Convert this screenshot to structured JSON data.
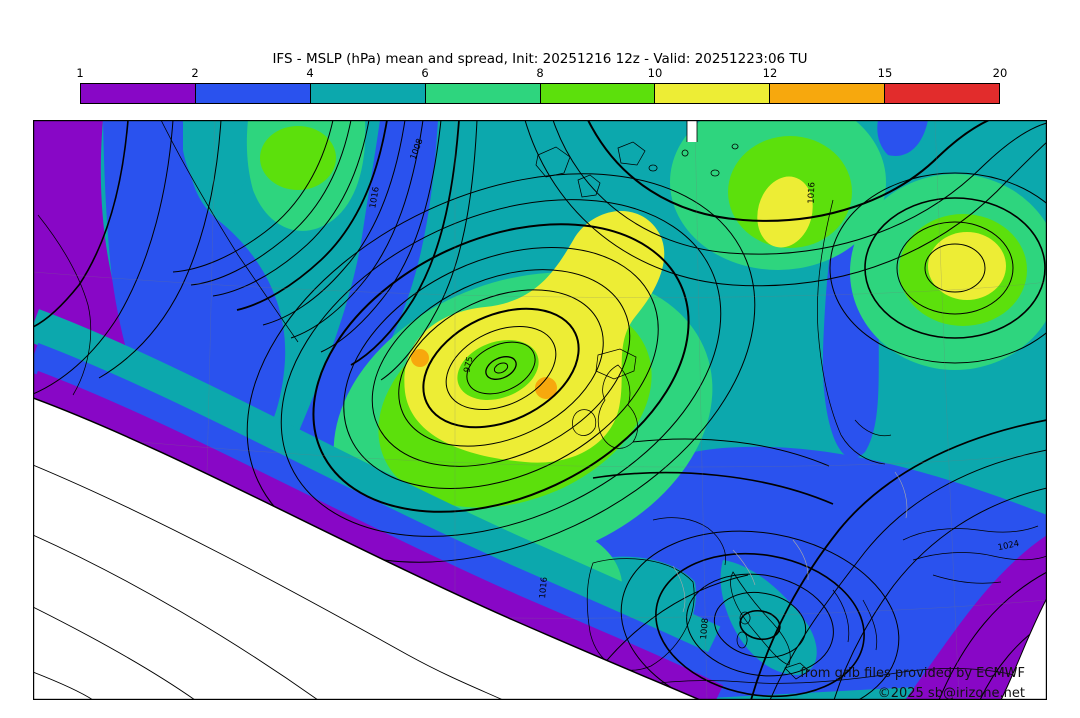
{
  "title": "IFS - MSLP (hPa) mean and spread, Init: 20251216 12z - Valid: 20251223:06 TU",
  "colorbar": {
    "unit": "hPa",
    "ticks": [
      "1",
      "2",
      "4",
      "6",
      "8",
      "10",
      "12",
      "15",
      "20"
    ],
    "segments": [
      {
        "label": "1-2",
        "color": "#8807c6"
      },
      {
        "label": "2-4",
        "color": "#2a52ee"
      },
      {
        "label": "4-6",
        "color": "#0ca8ad"
      },
      {
        "label": "6-8",
        "color": "#2ed57e"
      },
      {
        "label": "8-10",
        "color": "#5ce00c"
      },
      {
        "label": "10-12",
        "color": "#eded35"
      },
      {
        "label": "12-15",
        "color": "#f7a80d"
      },
      {
        "label": "15-20",
        "color": "#e22c2c"
      }
    ],
    "border_color": "#000000"
  },
  "map": {
    "contour_labels": [
      {
        "text": "975"
      },
      {
        "text": "1008"
      },
      {
        "text": "1016"
      },
      {
        "text": "1016"
      },
      {
        "text": "1016"
      },
      {
        "text": "1008"
      },
      {
        "text": "1024"
      }
    ],
    "attribution_line1": "from grib files provided by ECMWF",
    "attribution_line2": "©2025 sb@irizone.net",
    "contour_color": "#000000",
    "outside_domain_color": "#ffffff"
  }
}
